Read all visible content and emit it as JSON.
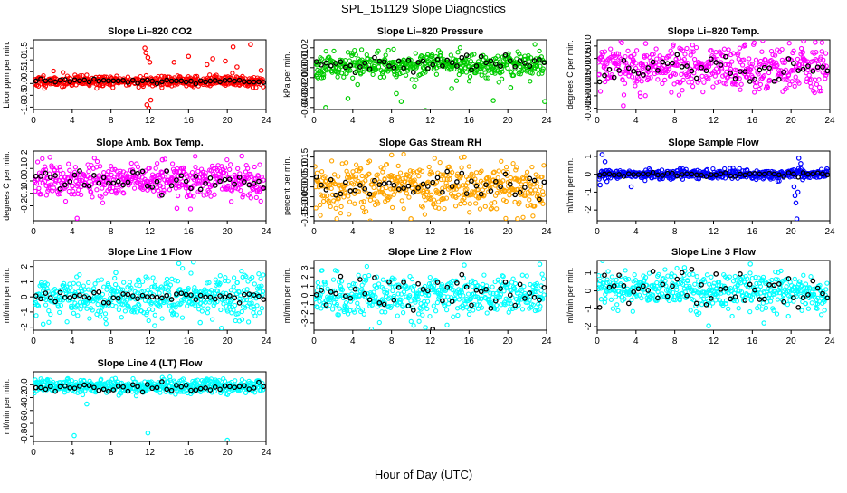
{
  "figure": {
    "title": "SPL_151129  Slope Diagnostics",
    "xlabel": "Hour of Day (UTC)"
  },
  "chart_data": [
    {
      "type": "scatter",
      "title": "Slope Li–820 CO2",
      "ylabel": "Licor ppm per min.",
      "xlim": [
        0,
        24
      ],
      "xticks": [
        0,
        4,
        8,
        12,
        16,
        20,
        24
      ],
      "ylim": [
        -1.1,
        1.85
      ],
      "yticks": [
        -1.0,
        -0.5,
        0.0,
        0.5,
        1.0,
        1.5
      ],
      "ytick_labels": [
        "-1.0",
        "-0.5",
        "0.0",
        "0.5",
        "1.0",
        "1.5"
      ],
      "color": "#ff0000",
      "center": 0.1,
      "spread": 0.12,
      "mean_spread": 0.05,
      "seed": 11,
      "outliers": [
        [
          11.5,
          1.5
        ],
        [
          11.6,
          1.3
        ],
        [
          11.8,
          1.1
        ],
        [
          12.0,
          0.9
        ],
        [
          11.7,
          -0.9
        ],
        [
          11.9,
          -1.05
        ],
        [
          12.1,
          -0.7
        ],
        [
          14.5,
          0.9
        ],
        [
          16.0,
          1.15
        ],
        [
          17.9,
          0.8
        ],
        [
          18.5,
          1.05
        ],
        [
          19.8,
          0.95
        ],
        [
          20.6,
          1.55
        ],
        [
          21.0,
          0.7
        ],
        [
          22.4,
          1.65
        ],
        [
          23.5,
          0.55
        ]
      ]
    },
    {
      "type": "scatter",
      "title": "Slope Li–820 Pressure",
      "ylabel": "kPa per min.",
      "xlim": [
        0,
        24
      ],
      "xticks": [
        0,
        4,
        8,
        12,
        16,
        20,
        24
      ],
      "ylim": [
        -0.042,
        0.028
      ],
      "yticks": [
        -0.04,
        -0.03,
        -0.02,
        -0.01,
        0.0,
        0.01,
        0.02
      ],
      "ytick_labels": [
        "-0.04",
        "-0.03",
        "-0.02",
        "-0.01",
        "0.00",
        "0.01",
        "0.02"
      ],
      "color": "#00cc00",
      "center": 0.003,
      "spread": 0.006,
      "mean_spread": 0.004,
      "seed": 23,
      "outliers": [
        [
          1.2,
          -0.04
        ],
        [
          3.5,
          -0.031
        ],
        [
          4.5,
          -0.017
        ],
        [
          8.5,
          -0.026
        ],
        [
          9.0,
          -0.034
        ],
        [
          11.5,
          -0.043
        ],
        [
          14.2,
          -0.021
        ],
        [
          18.5,
          -0.033
        ],
        [
          20.3,
          -0.02
        ],
        [
          23.8,
          -0.034
        ],
        [
          0.3,
          -0.009
        ]
      ]
    },
    {
      "type": "scatter",
      "title": "Slope Li–820 Temp.",
      "ylabel": "degrees C per min.",
      "xlim": [
        0,
        24
      ],
      "xticks": [
        0,
        4,
        8,
        12,
        16,
        20,
        24
      ],
      "ylim": [
        -0.0155,
        0.0125
      ],
      "yticks": [
        -0.015,
        -0.01,
        -0.005,
        0.0,
        0.005,
        0.01
      ],
      "ytick_labels": [
        "-0.015",
        "-0.010",
        "-0.005",
        "0.000",
        "0.005",
        "0.010"
      ],
      "color": "#ff00ff",
      "center": 0.001,
      "spread": 0.0045,
      "mean_spread": 0.0025,
      "seed": 37,
      "outliers": [
        [
          2.7,
          -0.014
        ],
        [
          21.3,
          0.012
        ],
        [
          22.5,
          0.0115
        ],
        [
          5.0,
          0.011
        ]
      ]
    },
    {
      "type": "scatter",
      "title": "Slope Amb. Box Temp.",
      "ylabel": "degrees C per min.",
      "xlim": [
        0,
        24
      ],
      "xticks": [
        0,
        4,
        8,
        12,
        16,
        20,
        24
      ],
      "ylim": [
        -0.32,
        0.24
      ],
      "yticks": [
        -0.2,
        -0.1,
        0.0,
        0.1,
        0.2
      ],
      "ytick_labels": [
        "-0.2",
        "-0.1",
        "0.0",
        "0.1",
        "0.2"
      ],
      "color": "#ff00ff",
      "center": 0.0,
      "spread": 0.07,
      "mean_spread": 0.05,
      "seed": 41,
      "outliers": [
        [
          4.5,
          -0.3
        ],
        [
          1.7,
          0.19
        ],
        [
          14.8,
          -0.22
        ],
        [
          21.5,
          0.2
        ],
        [
          13.3,
          0.17
        ]
      ]
    },
    {
      "type": "scatter",
      "title": "Slope Gas Stream RH",
      "ylabel": "percent per min.",
      "xlim": [
        0,
        24
      ],
      "xticks": [
        0,
        4,
        8,
        12,
        16,
        20,
        24
      ],
      "ylim": [
        -0.17,
        0.18
      ],
      "yticks": [
        -0.15,
        -0.1,
        -0.05,
        0.0,
        0.05,
        0.1,
        0.15
      ],
      "ytick_labels": [
        "-0.15",
        "-0.10",
        "-0.05",
        "0.00",
        "0.05",
        "0.10",
        "0.15"
      ],
      "color": "#ffa500",
      "center": 0.0,
      "spread": 0.06,
      "mean_spread": 0.035,
      "seed": 53,
      "outliers": [
        [
          8.0,
          0.16
        ],
        [
          10.0,
          -0.16
        ],
        [
          15.5,
          0.15
        ],
        [
          21.0,
          -0.16
        ]
      ]
    },
    {
      "type": "scatter",
      "title": "Slope Sample Flow",
      "ylabel": "ml/min per min.",
      "xlim": [
        0,
        24
      ],
      "xticks": [
        0,
        4,
        8,
        12,
        16,
        20,
        24
      ],
      "ylim": [
        -2.6,
        1.3
      ],
      "yticks": [
        -2,
        -1,
        0,
        1
      ],
      "ytick_labels": [
        "-2",
        "-1",
        "0",
        "1"
      ],
      "color": "#0000ff",
      "center": 0.0,
      "spread": 0.12,
      "mean_spread": 0.06,
      "seed": 67,
      "outliers": [
        [
          0.5,
          1.1
        ],
        [
          0.8,
          0.7
        ],
        [
          1.0,
          -0.4
        ],
        [
          0.3,
          -0.6
        ],
        [
          3.5,
          -0.7
        ],
        [
          20.3,
          -0.7
        ],
        [
          20.4,
          -1.2
        ],
        [
          20.5,
          -1.6
        ],
        [
          20.6,
          -2.5
        ],
        [
          20.7,
          -1.0
        ],
        [
          20.8,
          0.9
        ],
        [
          21.0,
          0.6
        ],
        [
          21.2,
          -0.3
        ],
        [
          23.7,
          0.3
        ]
      ]
    },
    {
      "type": "scatter",
      "title": "Slope Line 1 Flow",
      "ylabel": "ml/min per min.",
      "xlim": [
        0,
        24
      ],
      "xticks": [
        0,
        4,
        8,
        12,
        16,
        20,
        24
      ],
      "ylim": [
        -2.2,
        2.4
      ],
      "yticks": [
        -2,
        -1,
        0,
        1,
        2
      ],
      "ytick_labels": [
        "-2",
        "-1",
        "0",
        "1",
        "2"
      ],
      "color": "#00ffff",
      "center": 0.0,
      "spread": 0.65,
      "mean_spread": 0.15,
      "seed": 71,
      "outliers": [
        [
          1.0,
          -1.8
        ],
        [
          8.5,
          1.6
        ],
        [
          12.5,
          -1.9
        ],
        [
          15.0,
          2.2
        ],
        [
          16.5,
          2.3
        ],
        [
          17.2,
          -1.7
        ]
      ]
    },
    {
      "type": "scatter",
      "title": "Slope Line 2 Flow",
      "ylabel": "ml/min per min.",
      "xlim": [
        0,
        24
      ],
      "xticks": [
        0,
        4,
        8,
        12,
        16,
        20,
        24
      ],
      "ylim": [
        -3.8,
        3.8
      ],
      "yticks": [
        -3,
        -2,
        -1,
        0,
        1,
        2,
        3
      ],
      "ytick_labels": [
        "-3",
        "-2",
        "-1",
        "0",
        "1",
        "2",
        "3"
      ],
      "color": "#00ffff",
      "center": 0.0,
      "spread": 1.1,
      "mean_spread": 1.1,
      "seed": 83,
      "outliers": [
        [
          15.5,
          3.3
        ],
        [
          23.3,
          3.4
        ],
        [
          11.5,
          -3.5
        ]
      ]
    },
    {
      "type": "scatter",
      "title": "Slope Line 3 Flow",
      "ylabel": "ml/min per min.",
      "xlim": [
        0,
        24
      ],
      "xticks": [
        0,
        4,
        8,
        12,
        16,
        20,
        24
      ],
      "ylim": [
        -2.2,
        1.7
      ],
      "yticks": [
        -2,
        -1,
        0,
        1
      ],
      "ytick_labels": [
        "-2",
        "-1",
        "0",
        "1"
      ],
      "color": "#00ffff",
      "center": 0.0,
      "spread": 0.55,
      "mean_spread": 0.6,
      "seed": 97,
      "outliers": [
        [
          11.5,
          -1.95
        ],
        [
          15.8,
          1.5
        ],
        [
          17.2,
          -1.8
        ],
        [
          9.0,
          1.3
        ]
      ]
    },
    {
      "type": "scatter",
      "title": "Slope Line 4 (LT) Flow",
      "ylabel": "ml/min per min.",
      "xlim": [
        0,
        24
      ],
      "xticks": [
        0,
        4,
        8,
        12,
        16,
        20,
        24
      ],
      "ylim": [
        -0.88,
        0.2
      ],
      "yticks": [
        -0.8,
        -0.6,
        -0.4,
        -0.2,
        0.0
      ],
      "ytick_labels": [
        "-0.8",
        "-0.6",
        "-0.4",
        "-0.2",
        "0.0"
      ],
      "color": "#00ffff",
      "center": -0.03,
      "spread": 0.055,
      "mean_spread": 0.04,
      "seed": 109,
      "outliers": [
        [
          4.2,
          -0.79
        ],
        [
          11.8,
          -0.75
        ],
        [
          20.0,
          -0.86
        ],
        [
          5.5,
          -0.3
        ]
      ]
    }
  ]
}
